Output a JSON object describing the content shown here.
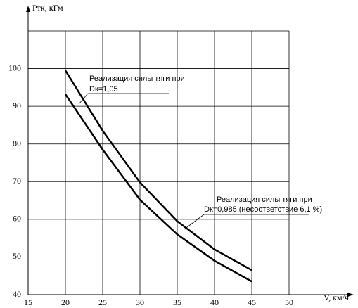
{
  "chart_data": {
    "type": "line",
    "y_label": "Pтк, кГм",
    "x_label": "V, км/ч",
    "x": [
      20,
      25,
      30,
      35,
      40,
      45
    ],
    "series": [
      {
        "color": "#000000",
        "values": [
          99.5,
          83.5,
          69.8,
          59.5,
          52,
          46.5
        ]
      },
      {
        "color": "#000000",
        "values": [
          93.2,
          78.5,
          65.2,
          56,
          49,
          43.5
        ]
      }
    ],
    "annotations": [
      {
        "lines": [
          "Реализация силы тяги при",
          "Dк=1,05"
        ]
      },
      {
        "lines": [
          "Реализация силы тяги при",
          "Dк=0,985 (несоответствие  6,1 %)"
        ]
      }
    ],
    "xlim": [
      15,
      50
    ],
    "xticks": [
      15,
      20,
      25,
      30,
      35,
      40,
      45,
      50
    ],
    "ylim": [
      40,
      110
    ],
    "yticks": [
      40,
      50,
      60,
      70,
      80,
      90,
      100
    ],
    "grid": true
  }
}
